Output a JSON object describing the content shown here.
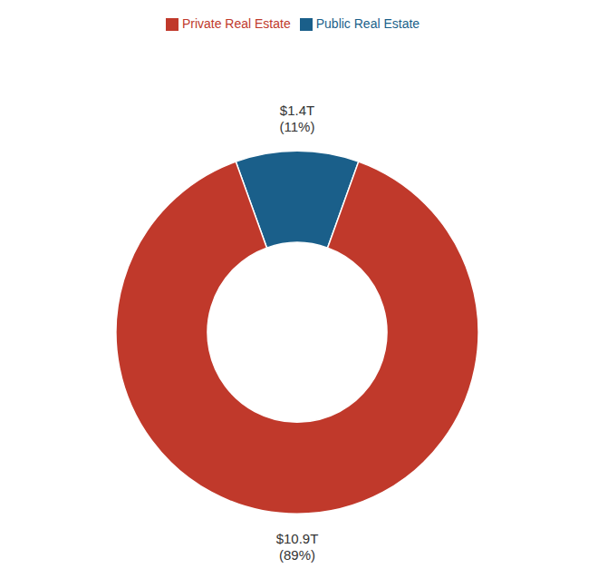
{
  "chart_data": {
    "type": "pie",
    "categories": [
      "Public Real Estate",
      "Private Real Estate"
    ],
    "values": [
      11,
      89
    ],
    "colors": [
      "#1a5f8a",
      "#c0392b"
    ],
    "legend": "top",
    "annotations": [
      {
        "text": "$1.4T\n(11%)"
      },
      {
        "text": "$10.9T\n(89%)"
      }
    ]
  }
}
